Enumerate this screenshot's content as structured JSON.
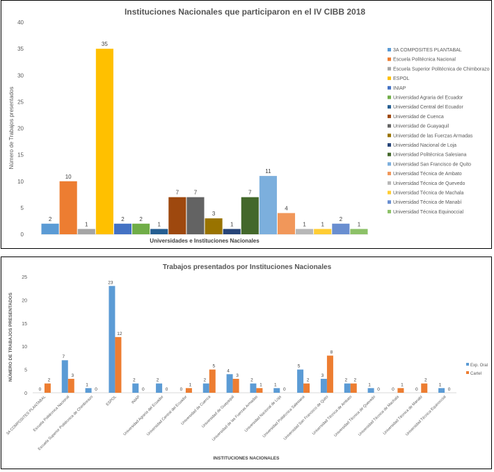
{
  "chart_data": [
    {
      "type": "bar",
      "title": "Instituciones Nacionales que participaron en el IV CIBB 2018",
      "xlabel": "Universidades e Instituciones Nacionales",
      "ylabel": "Número de Trabajos presentados",
      "ylim": [
        0,
        40
      ],
      "yticks": [
        "0",
        "5",
        "10",
        "15",
        "20",
        "25",
        "30",
        "35",
        "40"
      ],
      "grid": false,
      "legend_position": "right",
      "series": [
        {
          "name": "3A COMPOSITES PLANTABAL",
          "value": 2,
          "color": "#5B9BD5"
        },
        {
          "name": "Escuela Politécnica Nacional",
          "value": 10,
          "color": "#ED7D31"
        },
        {
          "name": "Escuela Superior Politécnica de Chimborazo",
          "value": 1,
          "color": "#A5A5A5"
        },
        {
          "name": "ESPOL",
          "value": 35,
          "color": "#FFC000"
        },
        {
          "name": "INIAP",
          "value": 2,
          "color": "#4472C4"
        },
        {
          "name": "Universidad Agraria del Ecuador",
          "value": 2,
          "color": "#70AD47"
        },
        {
          "name": "Universidad Central del Ecuador",
          "value": 1,
          "color": "#255E91"
        },
        {
          "name": "Universidad de Cuenca",
          "value": 7,
          "color": "#9E480E"
        },
        {
          "name": "Universidad de Guayaquil",
          "value": 7,
          "color": "#636363"
        },
        {
          "name": "Universidad de las Fuerzas Armadas",
          "value": 3,
          "color": "#997300"
        },
        {
          "name": "Universidad Nacional de Loja",
          "value": 1,
          "color": "#264478"
        },
        {
          "name": "Universidad Politécnica Salesiana",
          "value": 7,
          "color": "#43682B"
        },
        {
          "name": "Universidad San Francisco de Quito",
          "value": 11,
          "color": "#7CAFDD"
        },
        {
          "name": "Universidad Técnica de Ambato",
          "value": 4,
          "color": "#F1975A"
        },
        {
          "name": "Universidad Técnica de Quevedo",
          "value": 1,
          "color": "#B7B7B7"
        },
        {
          "name": "Universidad Técnica de Machala",
          "value": 1,
          "color": "#FFCD33"
        },
        {
          "name": "Universidad Técnica de Manabí",
          "value": 2,
          "color": "#698ED0"
        },
        {
          "name": "Universidad Técnica Equinoccial",
          "value": 1,
          "color": "#8CC168"
        }
      ]
    },
    {
      "type": "bar",
      "title": "Trabajos presentados por Instituciones Nacionales",
      "xlabel": "INSTITUCIONES NACIONALES",
      "ylabel": "NÚMERO DE TRABAJOS PRESENTADOS",
      "ylim": [
        0,
        25
      ],
      "yticks": [
        "0",
        "5",
        "10",
        "15",
        "20",
        "25"
      ],
      "grid": false,
      "legend_position": "right",
      "categories": [
        "3A COMPOSITES PLANTABAL",
        "Escuela Politécnica Nacional",
        "Escuela Superior Politécnica de Chimborazo",
        "ESPOL",
        "INIAP",
        "Universidad Agraria del Ecuador",
        "Universidad Central del Ecuador",
        "Universidad de Cuenca",
        "Universidad de Guayaquil",
        "Universidad de las Fuerzas Armadas",
        "Universidad Nacional de Loja",
        "Universidad Politécnica Salesiana",
        "Universidad San Francisco de Quito",
        "Universidad Técnica de Ambato",
        "Universidad Técnica de Quevedo",
        "Universidad Técnica de Machala",
        "Universidad Técnica de Manabí",
        "Universidad Técnica Equinoccial"
      ],
      "series": [
        {
          "name": "Exp. Oral",
          "color": "#5B9BD5",
          "values": [
            0,
            7,
            1,
            23,
            2,
            2,
            0,
            2,
            4,
            2,
            1,
            5,
            3,
            2,
            1,
            0,
            0,
            1
          ]
        },
        {
          "name": "Cartel",
          "color": "#ED7D31",
          "values": [
            2,
            3,
            0,
            12,
            0,
            0,
            1,
            5,
            3,
            1,
            0,
            2,
            8,
            2,
            0,
            1,
            2,
            0
          ]
        }
      ]
    }
  ]
}
